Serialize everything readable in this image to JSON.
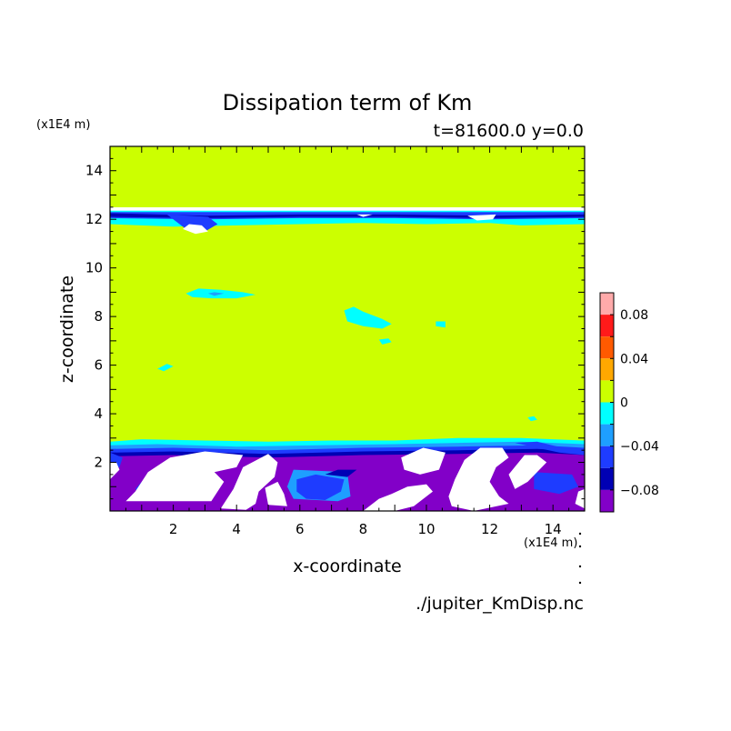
{
  "chart_data": {
    "type": "heatmap",
    "title": "Dissipation term of Km",
    "subtitle": "t=81600.0 y=0.0",
    "xlabel": "x-coordinate",
    "ylabel": "z-coordinate",
    "x_unit": "(x1E4 m)",
    "y_unit": "(x1E4 m)",
    "footer": "./jupiter_KmDisp.nc",
    "xlim": [
      0,
      15
    ],
    "ylim": [
      0,
      15
    ],
    "x_ticks": [
      2,
      4,
      6,
      8,
      10,
      12,
      14
    ],
    "y_ticks": [
      2,
      4,
      6,
      8,
      10,
      12,
      14
    ],
    "background_level": 0,
    "colorbar": {
      "levels": [
        {
          "min": 0.08,
          "max": 0.1,
          "color": "#ffaaaa"
        },
        {
          "min": 0.06,
          "max": 0.08,
          "color": "#ff1a1a"
        },
        {
          "min": 0.04,
          "max": 0.06,
          "color": "#ff5a00"
        },
        {
          "min": 0.02,
          "max": 0.04,
          "color": "#ffa800"
        },
        {
          "min": 0.0,
          "max": 0.02,
          "color": "#ccff00"
        },
        {
          "min": -0.02,
          "max": 0.0,
          "color": "#00ffff"
        },
        {
          "min": -0.04,
          "max": -0.02,
          "color": "#1e9fff"
        },
        {
          "min": -0.06,
          "max": -0.04,
          "color": "#1e3cff"
        },
        {
          "min": -0.08,
          "max": -0.06,
          "color": "#0000b4"
        },
        {
          "min": -0.1,
          "max": -0.08,
          "color": "#8200c8"
        }
      ],
      "tick_values": [
        0.08,
        0.04,
        0,
        -0.04,
        -0.08
      ],
      "tick_labels": [
        "0.08",
        "0.04",
        "0",
        "−0.04",
        "−0.08"
      ]
    },
    "regions": [
      {
        "level": -0.02,
        "color": "#00ffff",
        "points": [
          [
            0,
            2.85
          ],
          [
            1,
            2.95
          ],
          [
            3,
            2.9
          ],
          [
            5,
            2.85
          ],
          [
            7,
            2.9
          ],
          [
            9,
            2.9
          ],
          [
            11,
            3.0
          ],
          [
            13,
            3.0
          ],
          [
            15,
            2.9
          ],
          [
            15,
            0
          ],
          [
            0,
            0
          ]
        ]
      },
      {
        "level": -0.04,
        "color": "#1e9fff",
        "points": [
          [
            0,
            2.7
          ],
          [
            1.5,
            2.75
          ],
          [
            4,
            2.65
          ],
          [
            6.5,
            2.7
          ],
          [
            9,
            2.75
          ],
          [
            11,
            2.8
          ],
          [
            13,
            2.85
          ],
          [
            15,
            2.75
          ],
          [
            15,
            0
          ],
          [
            0,
            0
          ]
        ]
      },
      {
        "level": -0.06,
        "color": "#1e3cff",
        "points": [
          [
            0,
            2.55
          ],
          [
            2,
            2.6
          ],
          [
            5,
            2.5
          ],
          [
            8,
            2.6
          ],
          [
            11,
            2.65
          ],
          [
            13.5,
            2.7
          ],
          [
            15,
            2.6
          ],
          [
            15,
            0
          ],
          [
            0,
            0
          ]
        ]
      },
      {
        "level": -0.08,
        "color": "#0000b4",
        "points": [
          [
            0,
            2.4
          ],
          [
            2,
            2.45
          ],
          [
            5,
            2.35
          ],
          [
            8,
            2.45
          ],
          [
            11,
            2.5
          ],
          [
            13.5,
            2.55
          ],
          [
            15,
            2.45
          ],
          [
            15,
            0
          ],
          [
            0,
            0
          ]
        ]
      },
      {
        "level": -0.1,
        "color": "#8200c8",
        "points": [
          [
            0,
            2.25
          ],
          [
            2,
            2.3
          ],
          [
            5,
            2.2
          ],
          [
            8,
            2.3
          ],
          [
            11,
            2.35
          ],
          [
            13.5,
            2.4
          ],
          [
            15,
            2.3
          ],
          [
            15,
            0
          ],
          [
            0,
            0
          ]
        ]
      },
      {
        "level": -0.04,
        "color": "#1e9fff",
        "points": [
          [
            5.8,
            1.7
          ],
          [
            7.5,
            1.6
          ],
          [
            7.6,
            0.6
          ],
          [
            7.2,
            0.4
          ],
          [
            5.8,
            0.5
          ],
          [
            5.6,
            1.0
          ]
        ]
      },
      {
        "level": -0.06,
        "color": "#1e3cff",
        "points": [
          [
            5.9,
            1.3
          ],
          [
            6.5,
            1.5
          ],
          [
            7.4,
            1.3
          ],
          [
            7.3,
            0.8
          ],
          [
            6.8,
            0.45
          ],
          [
            6.2,
            0.5
          ],
          [
            5.9,
            0.8
          ]
        ]
      },
      {
        "level": -0.06,
        "color": "#1e3cff",
        "points": [
          [
            1.0,
            1.2
          ],
          [
            1.8,
            1.3
          ],
          [
            2.5,
            0.9
          ],
          [
            1.8,
            0.6
          ],
          [
            1.0,
            0.7
          ],
          [
            0.8,
            0.9
          ]
        ]
      },
      {
        "level": -0.06,
        "color": "#1e3cff",
        "points": [
          [
            13.4,
            1.6
          ],
          [
            14.6,
            1.5
          ],
          [
            14.8,
            1.0
          ],
          [
            14.2,
            0.7
          ],
          [
            13.4,
            0.9
          ]
        ]
      },
      {
        "level": -0.06,
        "color": "#1e3cff",
        "points": [
          [
            0,
            2.4
          ],
          [
            0.4,
            2.2
          ],
          [
            0.3,
            1.8
          ],
          [
            0,
            1.7
          ]
        ]
      },
      {
        "level": 0,
        "color": "#ffffff",
        "points": [
          [
            0,
            1.3
          ],
          [
            0.3,
            1.7
          ],
          [
            0.2,
            2.0
          ],
          [
            0,
            2.0
          ]
        ]
      },
      {
        "level": 0,
        "color": "#ffffff",
        "points": [
          [
            0.5,
            0.4
          ],
          [
            0.8,
            0.8
          ],
          [
            1.2,
            1.6
          ],
          [
            1.9,
            2.2
          ],
          [
            3.0,
            2.45
          ],
          [
            4.2,
            2.3
          ],
          [
            4.0,
            1.8
          ],
          [
            3.3,
            1.6
          ],
          [
            3.6,
            1.2
          ],
          [
            3.2,
            0.4
          ]
        ]
      },
      {
        "level": 0,
        "color": "#ffffff",
        "points": [
          [
            3.5,
            0.1
          ],
          [
            3.9,
            0.9
          ],
          [
            4.2,
            1.8
          ],
          [
            5.0,
            2.35
          ],
          [
            5.3,
            2.0
          ],
          [
            5.2,
            1.4
          ],
          [
            4.7,
            0.8
          ],
          [
            4.6,
            0.3
          ],
          [
            4.3,
            0.05
          ]
        ]
      },
      {
        "level": 0,
        "color": "#ffffff",
        "points": [
          [
            4.9,
            0.95
          ],
          [
            5.3,
            1.2
          ],
          [
            5.5,
            0.7
          ],
          [
            5.6,
            0.2
          ],
          [
            5.0,
            0.25
          ]
        ]
      },
      {
        "level": 0,
        "color": "#ffffff",
        "points": [
          [
            8.0,
            0.0
          ],
          [
            8.5,
            0.5
          ],
          [
            8.9,
            0.7
          ],
          [
            9.4,
            1.0
          ],
          [
            10.0,
            1.1
          ],
          [
            10.2,
            0.8
          ],
          [
            9.6,
            0.2
          ],
          [
            9.0,
            0.0
          ]
        ]
      },
      {
        "level": 0,
        "color": "#ffffff",
        "points": [
          [
            9.2,
            2.2
          ],
          [
            9.9,
            2.6
          ],
          [
            10.6,
            2.4
          ],
          [
            10.4,
            1.7
          ],
          [
            9.8,
            1.5
          ],
          [
            9.3,
            1.7
          ]
        ]
      },
      {
        "level": 0,
        "color": "#ffffff",
        "points": [
          [
            10.7,
            0.6
          ],
          [
            10.9,
            1.3
          ],
          [
            11.2,
            2.1
          ],
          [
            11.7,
            2.6
          ],
          [
            12.4,
            2.6
          ],
          [
            12.6,
            2.2
          ],
          [
            12.2,
            1.8
          ],
          [
            12.0,
            1.2
          ],
          [
            12.3,
            0.6
          ],
          [
            12.6,
            0.3
          ],
          [
            11.5,
            0.0
          ],
          [
            10.8,
            0.2
          ]
        ]
      },
      {
        "level": 0,
        "color": "#ffffff",
        "points": [
          [
            12.6,
            1.5
          ],
          [
            13.1,
            2.3
          ],
          [
            13.5,
            2.3
          ],
          [
            13.8,
            2.0
          ],
          [
            13.2,
            1.2
          ],
          [
            12.8,
            0.9
          ]
        ]
      },
      {
        "level": 0,
        "color": "#ffffff",
        "points": [
          [
            14.7,
            0.3
          ],
          [
            14.8,
            0.8
          ],
          [
            15,
            0.9
          ],
          [
            15,
            0.1
          ]
        ]
      },
      {
        "level": -0.08,
        "color": "#0000b4",
        "points": [
          [
            6.8,
            1.5
          ],
          [
            7.2,
            1.7
          ],
          [
            7.8,
            1.7
          ],
          [
            7.5,
            1.4
          ]
        ]
      },
      {
        "level": -0.06,
        "color": "#1e3cff",
        "points": [
          [
            12.8,
            2.8
          ],
          [
            13.5,
            2.85
          ],
          [
            14.3,
            2.6
          ],
          [
            15,
            2.5
          ],
          [
            15,
            2.3
          ],
          [
            14.2,
            2.4
          ],
          [
            13.5,
            2.6
          ]
        ]
      },
      {
        "level": -0.02,
        "color": "#00ffff",
        "points": [
          [
            0,
            12.35
          ],
          [
            15,
            12.35
          ],
          [
            15,
            11.8
          ],
          [
            13,
            11.75
          ],
          [
            12,
            11.85
          ],
          [
            10,
            11.8
          ],
          [
            8,
            11.85
          ],
          [
            6,
            11.8
          ],
          [
            4,
            11.75
          ],
          [
            2,
            11.7
          ],
          [
            0,
            11.8
          ]
        ]
      },
      {
        "level": -0.06,
        "color": "#1e3cff",
        "points": [
          [
            0,
            12.3
          ],
          [
            15,
            12.3
          ],
          [
            15,
            12.05
          ],
          [
            12,
            12.0
          ],
          [
            9,
            12.05
          ],
          [
            6,
            12.05
          ],
          [
            3,
            12.0
          ],
          [
            0,
            12.05
          ]
        ]
      },
      {
        "level": -0.08,
        "color": "#0000b4",
        "points": [
          [
            0,
            12.25
          ],
          [
            3,
            12.15
          ],
          [
            6,
            12.2
          ],
          [
            9,
            12.2
          ],
          [
            12,
            12.15
          ],
          [
            15,
            12.2
          ],
          [
            15,
            12.1
          ],
          [
            12,
            12.05
          ],
          [
            9,
            12.1
          ],
          [
            6,
            12.1
          ],
          [
            3,
            12.05
          ],
          [
            0,
            12.1
          ]
        ]
      },
      {
        "level": -0.06,
        "color": "#1e3cff",
        "points": [
          [
            1.8,
            12.2
          ],
          [
            2.4,
            11.6
          ],
          [
            3.0,
            11.5
          ],
          [
            3.4,
            11.8
          ],
          [
            3.1,
            12.1
          ]
        ]
      },
      {
        "level": 0,
        "color": "#ffffff",
        "points": [
          [
            2.3,
            11.6
          ],
          [
            2.7,
            11.4
          ],
          [
            3.1,
            11.5
          ],
          [
            2.9,
            11.75
          ],
          [
            2.5,
            11.8
          ]
        ]
      },
      {
        "level": 0,
        "color": "#ffffff",
        "points": [
          [
            11.3,
            12.15
          ],
          [
            11.6,
            11.95
          ],
          [
            12.1,
            12.0
          ],
          [
            12.2,
            12.2
          ]
        ]
      },
      {
        "level": 0,
        "color": "#ffffff",
        "points": [
          [
            7.8,
            12.2
          ],
          [
            8.0,
            12.1
          ],
          [
            8.3,
            12.2
          ]
        ]
      },
      {
        "level": -0.02,
        "color": "#00ffff",
        "points": [
          [
            2.4,
            8.95
          ],
          [
            2.8,
            9.15
          ],
          [
            3.5,
            9.1
          ],
          [
            4.2,
            9.0
          ],
          [
            4.6,
            8.9
          ],
          [
            4.0,
            8.75
          ],
          [
            3.2,
            8.75
          ],
          [
            2.6,
            8.8
          ]
        ]
      },
      {
        "level": -0.04,
        "color": "#1e9fff",
        "points": [
          [
            3.1,
            8.95
          ],
          [
            3.3,
            9.0
          ],
          [
            3.6,
            8.95
          ],
          [
            3.3,
            8.85
          ]
        ]
      },
      {
        "level": -0.02,
        "color": "#00ffff",
        "points": [
          [
            7.4,
            8.25
          ],
          [
            7.7,
            8.4
          ],
          [
            8.0,
            8.2
          ],
          [
            8.6,
            7.9
          ],
          [
            8.9,
            7.7
          ],
          [
            8.6,
            7.5
          ],
          [
            8.0,
            7.6
          ],
          [
            7.5,
            7.8
          ]
        ]
      },
      {
        "level": -0.02,
        "color": "#00ffff",
        "points": [
          [
            8.5,
            7.05
          ],
          [
            8.8,
            7.1
          ],
          [
            8.9,
            6.95
          ],
          [
            8.6,
            6.85
          ]
        ]
      },
      {
        "level": -0.02,
        "color": "#00ffff",
        "points": [
          [
            10.3,
            7.8
          ],
          [
            10.6,
            7.8
          ],
          [
            10.6,
            7.55
          ],
          [
            10.3,
            7.6
          ]
        ]
      },
      {
        "level": -0.02,
        "color": "#00ffff",
        "points": [
          [
            1.5,
            5.85
          ],
          [
            1.8,
            6.05
          ],
          [
            2.0,
            5.95
          ],
          [
            1.7,
            5.75
          ]
        ]
      },
      {
        "level": -0.02,
        "color": "#00ffff",
        "points": [
          [
            13.2,
            3.85
          ],
          [
            13.4,
            3.9
          ],
          [
            13.5,
            3.75
          ],
          [
            13.3,
            3.7
          ]
        ]
      }
    ]
  }
}
